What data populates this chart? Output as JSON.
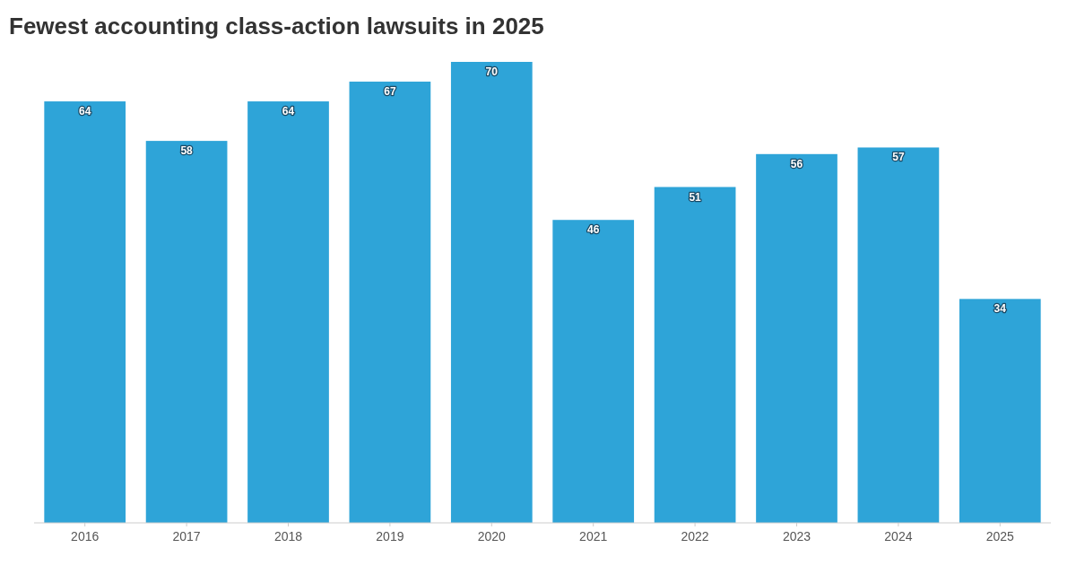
{
  "chart_data": {
    "type": "bar",
    "title": "Fewest accounting class-action lawsuits in 2025",
    "categories": [
      "2016",
      "2017",
      "2018",
      "2019",
      "2020",
      "2021",
      "2022",
      "2023",
      "2024",
      "2025"
    ],
    "values": [
      64,
      58,
      64,
      67,
      70,
      46,
      51,
      56,
      57,
      34
    ],
    "color": "#2ea4d8",
    "data_labels": true
  }
}
